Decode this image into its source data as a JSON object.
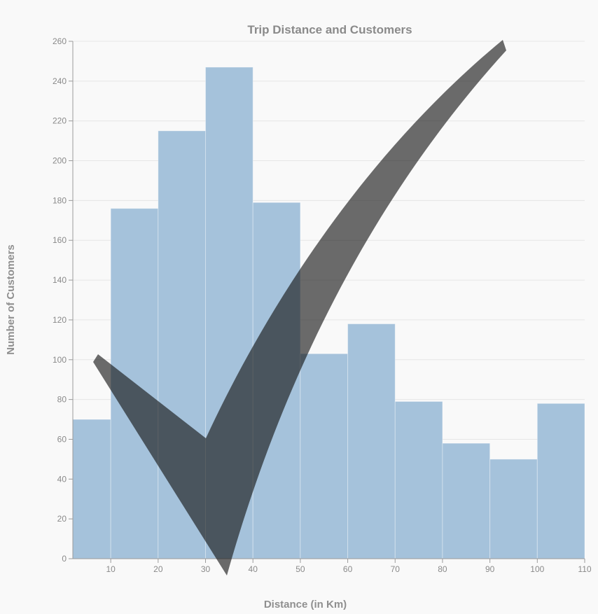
{
  "chart_data": {
    "type": "bar",
    "subtype": "histogram",
    "title": "Trip Distance and Customers",
    "xlabel": "Distance (in Km)",
    "ylabel": "Number of Customers",
    "xlim": [
      2,
      110
    ],
    "ylim": [
      0,
      260
    ],
    "x_ticks": [
      10,
      20,
      30,
      40,
      50,
      60,
      70,
      80,
      90,
      100,
      110
    ],
    "y_ticks": [
      0,
      20,
      40,
      60,
      80,
      100,
      120,
      140,
      160,
      180,
      200,
      220,
      240,
      260
    ],
    "bins": [
      {
        "x0": 2,
        "x1": 10,
        "value": 70
      },
      {
        "x0": 10,
        "x1": 20,
        "value": 176
      },
      {
        "x0": 20,
        "x1": 30,
        "value": 215
      },
      {
        "x0": 30,
        "x1": 40,
        "value": 247
      },
      {
        "x0": 40,
        "x1": 50,
        "value": 179
      },
      {
        "x0": 50,
        "x1": 60,
        "value": 103
      },
      {
        "x0": 60,
        "x1": 70,
        "value": 118
      },
      {
        "x0": 70,
        "x1": 80,
        "value": 79
      },
      {
        "x0": 80,
        "x1": 90,
        "value": 58
      },
      {
        "x0": 90,
        "x1": 100,
        "value": 50
      },
      {
        "x0": 100,
        "x1": 110,
        "value": 78
      }
    ],
    "grid": true,
    "colors": {
      "bar": "#a5c2db",
      "checkmark": "#111111"
    }
  },
  "overlay": {
    "icon": "checkmark-icon"
  }
}
